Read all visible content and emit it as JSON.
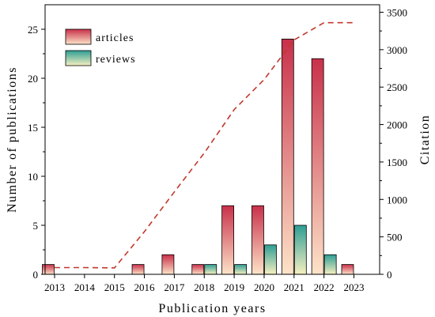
{
  "chart_data": {
    "type": "bar",
    "xlabel": "Publication years",
    "ylabel": "Number of publications",
    "y2label": "Citation",
    "categories": [
      "2013",
      "2014",
      "2015",
      "2016",
      "2017",
      "2018",
      "2019",
      "2020",
      "2021",
      "2022",
      "2023"
    ],
    "ylim": [
      0,
      27.5
    ],
    "yticks": [
      0,
      5,
      10,
      15,
      20,
      25
    ],
    "y2lim": [
      0,
      3600
    ],
    "y2ticks": [
      0,
      500,
      1000,
      1500,
      2000,
      2500,
      3000,
      3500
    ],
    "legend_position": "top-left",
    "series": [
      {
        "name": "articles",
        "kind": "bar",
        "values": [
          1,
          0,
          0,
          1,
          2,
          1,
          7,
          7,
          24,
          22,
          1
        ],
        "color_top": "#c8304a",
        "color_bottom": "#fde3c8"
      },
      {
        "name": "reviews",
        "kind": "bar",
        "values": [
          0,
          0,
          0,
          0,
          0,
          1,
          1,
          3,
          5,
          2,
          0
        ],
        "color_top": "#2e9e95",
        "color_bottom": "#f7f0c0"
      },
      {
        "kind": "line",
        "axis": "right",
        "style": "dashed",
        "color": "#c0392b",
        "values": [
          90,
          90,
          85,
          570,
          1100,
          1620,
          2200,
          2600,
          3130,
          3360,
          3360
        ]
      }
    ]
  }
}
